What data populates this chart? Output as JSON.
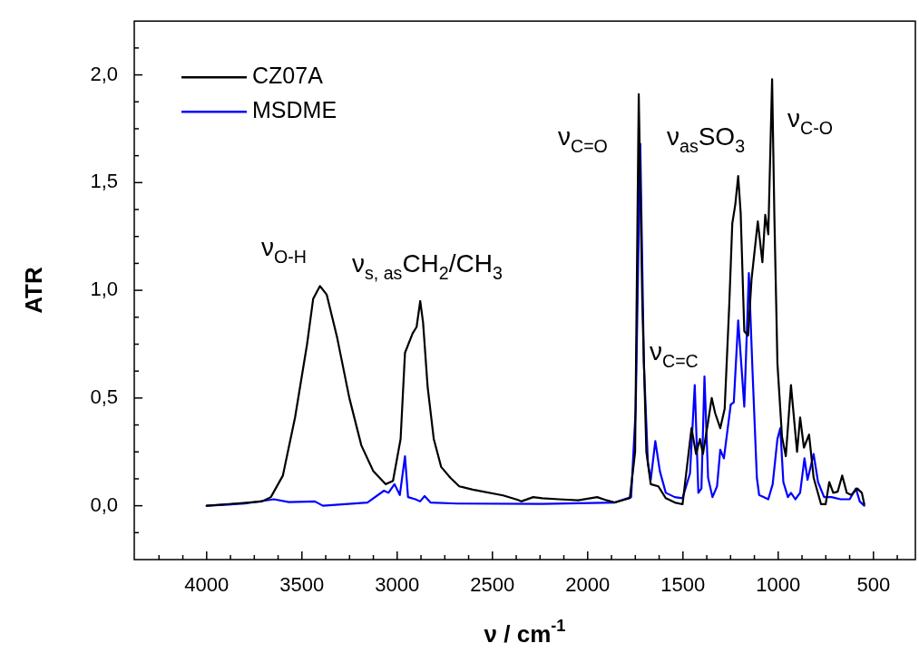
{
  "chart_data": {
    "type": "line",
    "xlabel": "ν / cm$^{-1}$",
    "ylabel": "ATR",
    "legend": "top left",
    "xlim": [
      4380,
      280
    ],
    "xticks": [
      {
        "value": 4250,
        "label": null
      },
      {
        "value": 4125,
        "label": null
      },
      4000,
      {
        "value": 3875,
        "label": null
      },
      {
        "value": 3750,
        "label": null
      },
      {
        "value": 3625,
        "label": null
      },
      3500,
      {
        "value": 3375,
        "label": null
      },
      {
        "value": 3250,
        "label": null
      },
      {
        "value": 3125,
        "label": null
      },
      3000,
      {
        "value": 2875,
        "label": null
      },
      {
        "value": 2750,
        "label": null
      },
      {
        "value": 2625,
        "label": null
      },
      2500,
      {
        "value": 2375,
        "label": null
      },
      {
        "value": 2250,
        "label": null
      },
      {
        "value": 2125,
        "label": null
      },
      2000,
      {
        "value": 1875,
        "label": null
      },
      {
        "value": 1750,
        "label": null
      },
      {
        "value": 1625,
        "label": null
      },
      1500,
      {
        "value": 1375,
        "label": null
      },
      {
        "value": 1250,
        "label": null
      },
      {
        "value": 1125,
        "label": null
      },
      1000,
      {
        "value": 875,
        "label": null
      },
      {
        "value": 750,
        "label": null
      },
      {
        "value": 625,
        "label": null
      },
      500,
      {
        "value": 375,
        "label": null
      }
    ],
    "ylim": [
      -0.25,
      2.25
    ],
    "yticks": [
      {
        "value": -0.125,
        "label": null
      },
      {
        "value": 0,
        "label": "0,0"
      },
      {
        "value": 0.125,
        "label": null
      },
      {
        "value": 0.25,
        "label": null
      },
      {
        "value": 0.375,
        "label": null
      },
      {
        "value": 0.5,
        "label": "0,5"
      },
      {
        "value": 0.625,
        "label": null
      },
      {
        "value": 0.75,
        "label": null
      },
      {
        "value": 0.875,
        "label": null
      },
      {
        "value": 1,
        "label": "1,0"
      },
      {
        "value": 1.125,
        "label": null
      },
      {
        "value": 1.25,
        "label": null
      },
      {
        "value": 1.375,
        "label": null
      },
      {
        "value": 1.5,
        "label": "1,5"
      },
      {
        "value": 1.625,
        "label": null
      },
      {
        "value": 1.75,
        "label": null
      },
      {
        "value": 1.875,
        "label": null
      },
      {
        "value": 2,
        "label": "2,0"
      },
      {
        "value": 2.125,
        "label": null
      }
    ],
    "marker": "none",
    "line_style": "solid",
    "series": [
      {
        "name": "CZ07A",
        "color": "#000000",
        "x": [
          4000,
          3850,
          3710,
          3663,
          3600,
          3536,
          3473,
          3441,
          3405,
          3370,
          3315,
          3251,
          3188,
          3125,
          3061,
          3022,
          2982,
          2959,
          2919,
          2898,
          2879,
          2864,
          2840,
          2808,
          2769,
          2721,
          2674,
          2603,
          2444,
          2365,
          2349,
          2286,
          2238,
          2150,
          2050,
          1950,
          1900,
          1858,
          1779,
          1751,
          1732,
          1713,
          1692,
          1669,
          1629,
          1590,
          1543,
          1502,
          1479,
          1455,
          1431,
          1411,
          1395,
          1368,
          1349,
          1331,
          1304,
          1281,
          1257,
          1241,
          1225,
          1210,
          1197,
          1178,
          1158,
          1140,
          1107,
          1083,
          1068,
          1052,
          1032,
          1020,
          1004,
          980,
          960,
          933,
          901,
          885,
          865,
          838,
          814,
          775,
          751,
          732,
          711,
          688,
          664,
          640,
          617,
          585,
          561,
          548
        ],
        "values": [
          0.0,
          0.01,
          0.02,
          0.04,
          0.14,
          0.41,
          0.75,
          0.96,
          1.02,
          0.98,
          0.78,
          0.5,
          0.28,
          0.16,
          0.1,
          0.115,
          0.31,
          0.71,
          0.8,
          0.83,
          0.95,
          0.85,
          0.55,
          0.31,
          0.18,
          0.13,
          0.09,
          0.075,
          0.048,
          0.027,
          0.02,
          0.04,
          0.035,
          0.03,
          0.025,
          0.04,
          0.025,
          0.015,
          0.035,
          0.25,
          1.91,
          0.93,
          0.25,
          0.1,
          0.09,
          0.035,
          0.015,
          0.007,
          0.18,
          0.36,
          0.24,
          0.31,
          0.24,
          0.39,
          0.5,
          0.43,
          0.36,
          0.45,
          0.93,
          1.31,
          1.4,
          1.53,
          1.36,
          0.81,
          0.79,
          1.05,
          1.32,
          1.13,
          1.35,
          1.26,
          1.98,
          1.34,
          0.66,
          0.32,
          0.23,
          0.56,
          0.25,
          0.41,
          0.27,
          0.33,
          0.13,
          0.007,
          0.007,
          0.11,
          0.06,
          0.065,
          0.14,
          0.06,
          0.05,
          0.08,
          0.06,
          0.007
        ]
      },
      {
        "name": "MSDME",
        "color": "#0000ff",
        "x": [
          4000,
          3800,
          3647,
          3568,
          3432,
          3390,
          3156,
          3069,
          3046,
          3014,
          2986,
          2959,
          2943,
          2904,
          2880,
          2856,
          2825,
          2683,
          2238,
          1858,
          1772,
          1748,
          1724,
          1705,
          1684,
          1669,
          1645,
          1621,
          1590,
          1543,
          1502,
          1463,
          1438,
          1419,
          1403,
          1387,
          1368,
          1345,
          1321,
          1304,
          1285,
          1249,
          1233,
          1210,
          1178,
          1154,
          1135,
          1112,
          1100,
          1052,
          1029,
          1004,
          989,
          973,
          949,
          933,
          910,
          885,
          862,
          846,
          814,
          791,
          759,
          720,
          672,
          625,
          592,
          572,
          548
        ],
        "values": [
          0.0,
          0.01,
          0.03,
          0.017,
          0.02,
          0.0,
          0.015,
          0.07,
          0.06,
          0.1,
          0.05,
          0.23,
          0.04,
          0.03,
          0.02,
          0.045,
          0.015,
          0.01,
          0.008,
          0.015,
          0.04,
          0.45,
          1.68,
          0.66,
          0.2,
          0.12,
          0.3,
          0.16,
          0.06,
          0.04,
          0.035,
          0.15,
          0.56,
          0.06,
          0.08,
          0.6,
          0.13,
          0.04,
          0.09,
          0.26,
          0.22,
          0.47,
          0.48,
          0.86,
          0.46,
          1.08,
          0.63,
          0.13,
          0.05,
          0.03,
          0.1,
          0.31,
          0.36,
          0.11,
          0.04,
          0.06,
          0.03,
          0.06,
          0.22,
          0.12,
          0.24,
          0.11,
          0.04,
          0.04,
          0.03,
          0.03,
          0.08,
          0.02,
          0.0
        ]
      }
    ],
    "annotations": [
      "ν$_{O-H}$",
      "ν$_{s, as}$CH$_{2}$/CH$_{3}$",
      "ν$_{C=O}$",
      "ν$_{C=C}$",
      "ν$_{as}$SO$_{3}$",
      "ν$_{C-O}$"
    ]
  }
}
